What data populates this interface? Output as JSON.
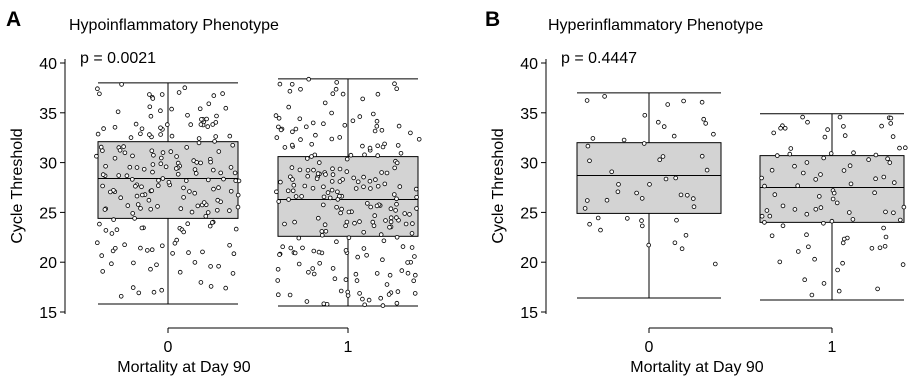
{
  "chart_data": [
    {
      "type": "box",
      "panel_label": "A",
      "title": "Hypoinflammatory Phenotype",
      "annotation": "p = 0.0021",
      "xlabel": "Mortality at Day 90",
      "ylabel": "Cycle Threshold",
      "categories": [
        "0",
        "1"
      ],
      "yticks": [
        15,
        20,
        25,
        30,
        35,
        40
      ],
      "ylim": [
        15,
        40
      ],
      "boxes": [
        {
          "category": "0",
          "min": 15.8,
          "q1": 24.4,
          "median": 28.4,
          "q3": 32.1,
          "max": 38.0,
          "n_points": 200
        },
        {
          "category": "1",
          "min": 15.6,
          "q1": 22.6,
          "median": 26.3,
          "q3": 30.6,
          "max": 38.4,
          "n_points": 230
        }
      ]
    },
    {
      "type": "box",
      "panel_label": "B",
      "title": "Hyperinflammatory Phenotype",
      "annotation": "p = 0.4447",
      "xlabel": "Mortality at Day 90",
      "ylabel": "Cycle Threshold",
      "categories": [
        "0",
        "1"
      ],
      "yticks": [
        15,
        20,
        25,
        30,
        35,
        40
      ],
      "ylim": [
        15,
        40
      ],
      "boxes": [
        {
          "category": "0",
          "min": 16.4,
          "q1": 24.9,
          "median": 28.7,
          "q3": 32.0,
          "max": 37.0,
          "n_points": 48
        },
        {
          "category": "1",
          "min": 16.2,
          "q1": 24.0,
          "median": 27.5,
          "q3": 30.7,
          "max": 34.9,
          "n_points": 90
        }
      ]
    }
  ]
}
